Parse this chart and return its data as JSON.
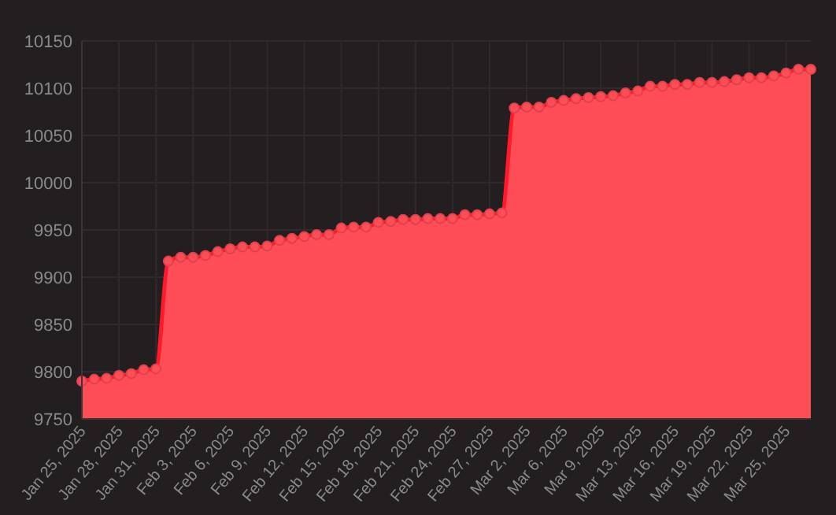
{
  "chart_data": {
    "type": "area",
    "categories": [
      "Jan 25, 2025",
      null,
      null,
      "Jan 28, 2025",
      null,
      null,
      "Jan 31, 2025",
      null,
      null,
      "Feb 3, 2025",
      null,
      null,
      "Feb 6, 2025",
      null,
      null,
      "Feb 9, 2025",
      null,
      null,
      "Feb 12, 2025",
      null,
      null,
      "Feb 15, 2025",
      null,
      null,
      "Feb 18, 2025",
      null,
      null,
      "Feb 21, 2025",
      null,
      null,
      "Feb 24, 2025",
      null,
      null,
      "Feb 27, 2025",
      null,
      null,
      "Mar 2, 2025",
      null,
      null,
      "Mar 6, 2025",
      null,
      null,
      "Mar 9, 2025",
      null,
      null,
      "Mar 13, 2025",
      null,
      null,
      "Mar 16, 2025",
      null,
      null,
      "Mar 19, 2025",
      null,
      null,
      "Mar 22, 2025",
      null,
      null,
      "Mar 25, 2025",
      null,
      null
    ],
    "series": [
      {
        "color": "#ff4d58",
        "values": [
          9790,
          9792,
          9793,
          9796,
          9798,
          9802,
          9803,
          9917,
          9921,
          9921,
          9923,
          9927,
          9930,
          9932,
          9932,
          9933,
          9939,
          9941,
          9943,
          9945,
          9945,
          9952,
          9953,
          9953,
          9958,
          9959,
          9961,
          9961,
          9962,
          9962,
          9962,
          9966,
          9966,
          9967,
          9968,
          10079,
          10080,
          10080,
          10085,
          10087,
          10089,
          10090,
          10091,
          10092,
          10095,
          10097,
          10102,
          10102,
          10104,
          10104,
          10106,
          10106,
          10107,
          10109,
          10111,
          10111,
          10113,
          10116,
          10120,
          10120
        ]
      }
    ],
    "ylim": [
      9750,
      10150
    ],
    "yticks": [
      9750,
      9800,
      9850,
      9900,
      9950,
      10000,
      10050,
      10100,
      10150
    ],
    "grid": true,
    "marker": "circle",
    "line_style": "solid"
  }
}
